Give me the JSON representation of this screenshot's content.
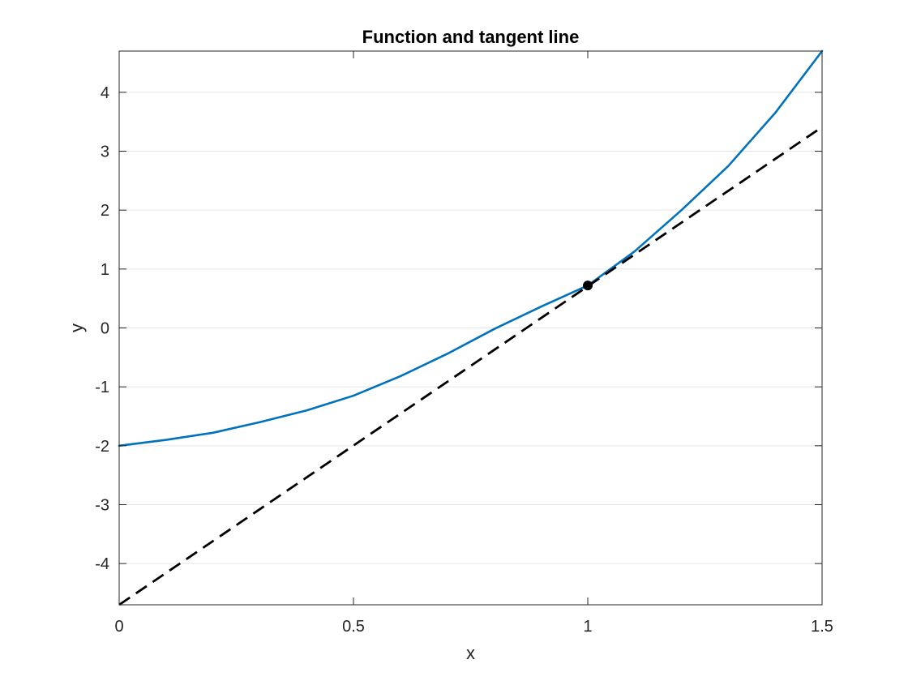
{
  "chart_data": {
    "type": "line",
    "title": "Function and tangent line",
    "xlabel": "x",
    "ylabel": "y",
    "xlim": [
      0,
      1.5
    ],
    "ylim": [
      -4.7,
      4.7
    ],
    "grid": "horizontal",
    "x_ticks": [
      0,
      0.5,
      1,
      1.5
    ],
    "x_tick_labels": [
      "0",
      "0.5",
      "1",
      "1.5"
    ],
    "y_ticks": [
      -4,
      -3,
      -2,
      -1,
      0,
      1,
      2,
      3,
      4
    ],
    "y_tick_labels": [
      "-4",
      "-3",
      "-2",
      "-1",
      "0",
      "1",
      "2",
      "3",
      "4"
    ],
    "series": [
      {
        "style": "solid",
        "color": "#0072BD",
        "x": [
          0,
          0.1,
          0.2,
          0.3,
          0.4,
          0.5,
          0.6,
          0.7,
          0.8,
          0.9,
          1.0,
          1.1,
          1.2,
          1.3,
          1.4,
          1.5
        ],
        "y": [
          -2.0,
          -1.9,
          -1.78,
          -1.6,
          -1.4,
          -1.15,
          -0.82,
          -0.44,
          -0.02,
          0.36,
          0.72,
          1.3,
          2.0,
          2.75,
          3.65,
          4.7
        ]
      },
      {
        "style": "dashed",
        "color": "#000000",
        "x": [
          0,
          1.5
        ],
        "y": [
          -4.7,
          3.41
        ]
      }
    ],
    "points": [
      {
        "x": 1.0,
        "y": 0.72,
        "color": "#000000"
      }
    ]
  }
}
